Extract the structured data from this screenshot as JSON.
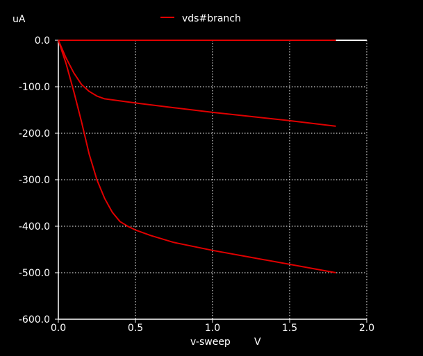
{
  "chart_data": {
    "type": "line",
    "title": "",
    "xlabel": "v-sweep",
    "xunit": "V",
    "ylabel": "uA",
    "xlim": [
      0.0,
      2.0
    ],
    "ylim": [
      -600.0,
      0.0
    ],
    "x_ticks": [
      "0.0",
      "0.5",
      "1.0",
      "1.5",
      "2.0"
    ],
    "y_ticks": [
      "0.0",
      "-100.0",
      "-200.0",
      "-300.0",
      "-400.0",
      "-500.0",
      "-600.0"
    ],
    "grid": true,
    "legend": {
      "position": "top-center",
      "entries": [
        "vds#branch"
      ]
    },
    "colors": {
      "background": "#000000",
      "axes": "#ffffff",
      "grid": "#ffffff",
      "series": "#e00000"
    },
    "series": [
      {
        "name": "vds#branch",
        "segments": [
          {
            "x": [
              0.0,
              1.8
            ],
            "y": [
              0.0,
              0.0
            ]
          },
          {
            "x": [
              0.0,
              0.05,
              0.1,
              0.15,
              0.2,
              0.25,
              0.3,
              0.5,
              0.75,
              1.0,
              1.25,
              1.5,
              1.8
            ],
            "y": [
              0.0,
              -38,
              -70,
              -95,
              -110,
              -120,
              -126,
              -135,
              -145,
              -155,
              -164,
              -173,
              -185
            ]
          },
          {
            "x": [
              0.0,
              0.05,
              0.1,
              0.15,
              0.2,
              0.25,
              0.3,
              0.35,
              0.4,
              0.45,
              0.5,
              0.6,
              0.75,
              1.0,
              1.25,
              1.5,
              1.8
            ],
            "y": [
              0.0,
              -50,
              -110,
              -175,
              -245,
              -300,
              -340,
              -370,
              -390,
              -400,
              -408,
              -420,
              -435,
              -452,
              -467,
              -482,
              -500
            ]
          }
        ]
      }
    ]
  }
}
